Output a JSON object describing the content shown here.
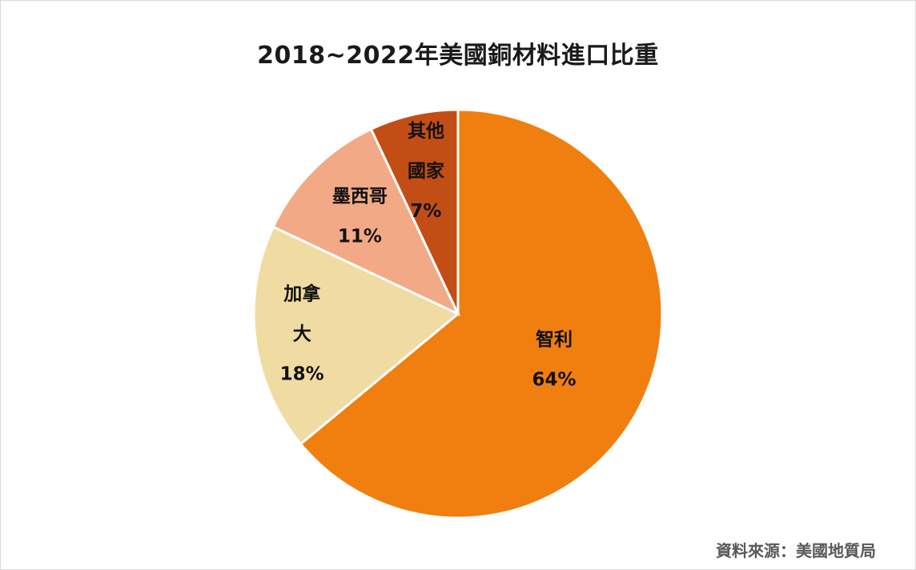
{
  "chart_data": {
    "type": "pie",
    "title": "2018~2022年美國銅材料進口比重",
    "slices": [
      {
        "label": "智利",
        "label_lines": [
          "智利"
        ],
        "value": 64,
        "value_label": "64%",
        "color": "#f07f0f"
      },
      {
        "label": "加拿大",
        "label_lines": [
          "加拿",
          "大"
        ],
        "value": 18,
        "value_label": "18%",
        "color": "#f0dba2"
      },
      {
        "label": "墨西哥",
        "label_lines": [
          "墨西哥"
        ],
        "value": 11,
        "value_label": "11%",
        "color": "#f2a985"
      },
      {
        "label": "其他國家",
        "label_lines": [
          "其他",
          "國家"
        ],
        "value": 7,
        "value_label": "7%",
        "color": "#c34e15"
      }
    ],
    "start_angle": "12 o'clock",
    "direction": "clockwise",
    "legend": "none"
  },
  "source": "資料來源：美國地質局"
}
